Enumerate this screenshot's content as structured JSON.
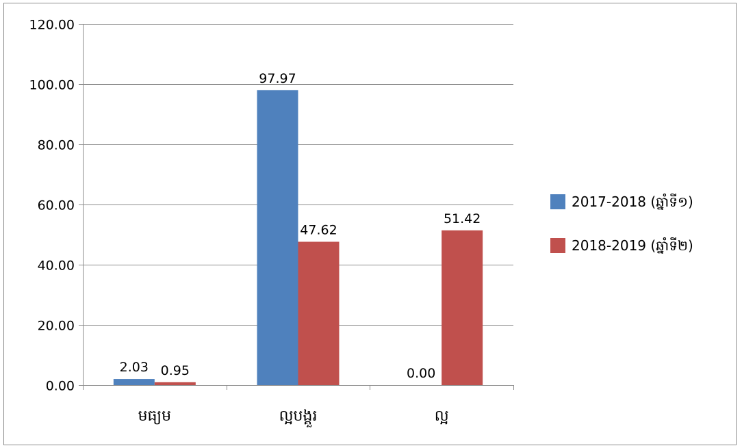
{
  "chart_data": {
    "type": "bar",
    "title": "",
    "xlabel": "",
    "ylabel": "",
    "categories": [
      "មធ្យម",
      "ល្អបង្គួរ",
      "ល្អ"
    ],
    "series": [
      {
        "name": "2017-2018 (ឆ្នាំទី១)",
        "color": "#4f81bd",
        "values": [
          2.03,
          97.97,
          0.0
        ],
        "labels": [
          "2.03",
          "97.97",
          "0.00"
        ]
      },
      {
        "name": "2018-2019 (ឆ្នាំទី២)",
        "color": "#c0504d",
        "values": [
          0.95,
          47.62,
          51.42
        ],
        "labels": [
          "0.95",
          "47.62",
          "51.42"
        ]
      }
    ],
    "ylim": [
      0,
      120
    ],
    "yticks": [
      "0.00",
      "20.00",
      "40.00",
      "60.00",
      "80.00",
      "100.00",
      "120.00"
    ],
    "ytick_values": [
      0,
      20,
      40,
      60,
      80,
      100,
      120
    ],
    "grid": true,
    "legend_position": "right"
  }
}
